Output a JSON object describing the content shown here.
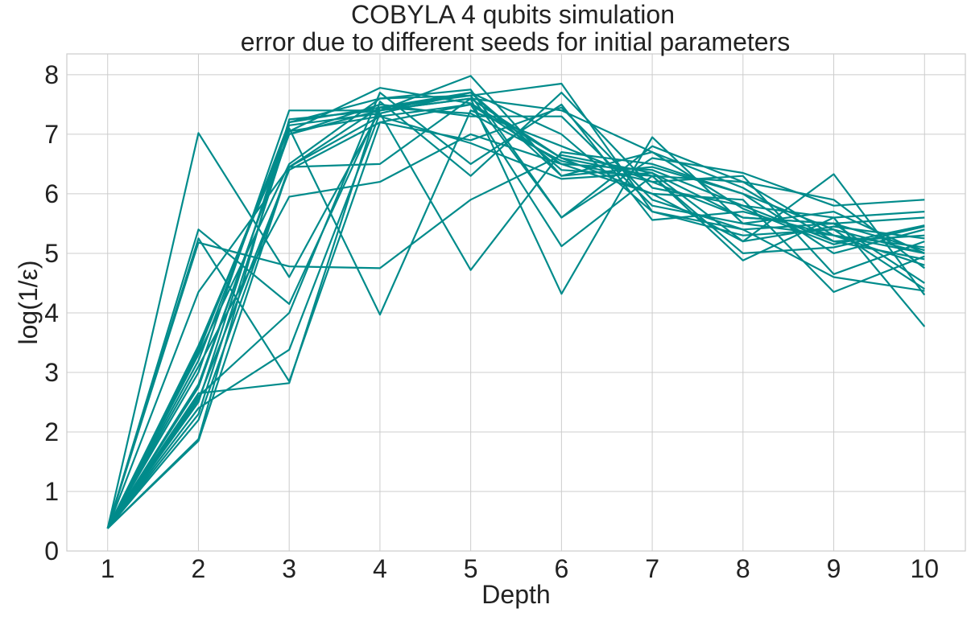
{
  "chart_data": {
    "type": "line",
    "title_line1": "COBYLA 4 qubits simulation",
    "title_line2": "error due to different seeds for initial parameters",
    "xlabel": "Depth",
    "ylabel": "log(1/ε)",
    "x": [
      1,
      2,
      3,
      4,
      5,
      6,
      7,
      8,
      9,
      10
    ],
    "x_tick_labels": [
      "1",
      "2",
      "3",
      "4",
      "5",
      "6",
      "7",
      "8",
      "9",
      "10"
    ],
    "y_ticks": [
      0,
      1,
      2,
      3,
      4,
      5,
      6,
      7,
      8
    ],
    "y_tick_labels": [
      "0",
      "1",
      "2",
      "3",
      "4",
      "5",
      "6",
      "7",
      "8"
    ],
    "xlim": [
      0.55,
      10.45
    ],
    "ylim": [
      0,
      8.35
    ],
    "grid": true,
    "line_color": "#008b8b",
    "series": [
      {
        "values": [
          0.38,
          7.02,
          4.6,
          7.4,
          7.6,
          6.6,
          6.3,
          6.2,
          5.3,
          5.0
        ]
      },
      {
        "values": [
          0.38,
          5.4,
          4.15,
          7.45,
          7.7,
          6.3,
          6.7,
          6.1,
          5.2,
          4.9
        ]
      },
      {
        "values": [
          0.38,
          5.25,
          2.85,
          7.2,
          7.5,
          6.5,
          6.4,
          5.8,
          5.6,
          5.7
        ]
      },
      {
        "values": [
          0.38,
          5.18,
          4.78,
          4.75,
          5.9,
          6.65,
          6.35,
          5.6,
          5.5,
          5.6
        ]
      },
      {
        "values": [
          0.38,
          4.35,
          6.45,
          6.5,
          7.6,
          4.32,
          6.95,
          5.5,
          5.3,
          5.1
        ]
      },
      {
        "values": [
          0.38,
          3.4,
          7.1,
          3.97,
          7.4,
          6.8,
          6.2,
          6.3,
          4.65,
          5.2
        ]
      },
      {
        "values": [
          0.38,
          3.35,
          7.15,
          7.35,
          4.72,
          6.7,
          6.5,
          6.0,
          5.0,
          5.4
        ]
      },
      {
        "values": [
          0.38,
          3.3,
          6.5,
          7.6,
          7.75,
          5.6,
          6.6,
          6.35,
          5.8,
          5.9
        ]
      },
      {
        "values": [
          0.38,
          3.2,
          7.2,
          7.45,
          7.65,
          7.85,
          5.7,
          5.4,
          5.5,
          5.05
        ]
      },
      {
        "values": [
          0.38,
          3.1,
          5.95,
          6.2,
          7.0,
          6.5,
          6.0,
          5.2,
          6.33,
          4.3
        ]
      },
      {
        "values": [
          0.38,
          3.0,
          7.4,
          7.4,
          7.98,
          6.3,
          6.45,
          6.0,
          5.4,
          4.4
        ]
      },
      {
        "values": [
          0.38,
          2.8,
          7.0,
          7.5,
          7.3,
          7.3,
          5.8,
          5.5,
          5.7,
          5.0
        ]
      },
      {
        "values": [
          0.38,
          2.75,
          7.05,
          7.3,
          7.5,
          5.12,
          6.3,
          4.88,
          5.6,
          3.77
        ]
      },
      {
        "values": [
          0.38,
          2.65,
          2.82,
          7.55,
          6.3,
          7.7,
          6.1,
          5.8,
          5.2,
          5.3
        ]
      },
      {
        "values": [
          0.38,
          2.6,
          4.0,
          7.7,
          6.5,
          7.5,
          5.56,
          5.7,
          5.3,
          4.8
        ]
      },
      {
        "values": [
          0.38,
          2.55,
          6.4,
          7.2,
          6.9,
          7.45,
          5.9,
          5.4,
          4.6,
          4.37
        ]
      },
      {
        "values": [
          0.38,
          2.5,
          7.2,
          7.6,
          7.65,
          5.6,
          6.8,
          6.2,
          5.9,
          4.75
        ]
      },
      {
        "values": [
          0.38,
          2.4,
          3.38,
          7.35,
          7.7,
          7.0,
          5.7,
          5.3,
          5.4,
          5.0
        ]
      },
      {
        "values": [
          0.38,
          2.3,
          7.05,
          7.78,
          7.52,
          6.6,
          6.0,
          5.9,
          4.35,
          4.95
        ]
      },
      {
        "values": [
          0.38,
          2.2,
          6.45,
          7.3,
          6.85,
          6.25,
          6.35,
          5.2,
          5.45,
          5.25
        ]
      },
      {
        "values": [
          0.38,
          1.88,
          7.25,
          7.4,
          7.7,
          6.4,
          6.3,
          5.0,
          5.1,
          5.45
        ]
      },
      {
        "values": [
          0.38,
          1.85,
          6.45,
          7.45,
          7.35,
          6.55,
          6.2,
          5.6,
          5.5,
          4.5
        ]
      },
      {
        "values": [
          0.38,
          3.45,
          7.0,
          7.4,
          7.6,
          7.4,
          6.7,
          5.75,
          5.15,
          5.47
        ]
      }
    ]
  }
}
